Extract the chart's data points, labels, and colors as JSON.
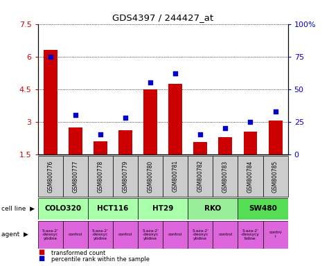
{
  "title": "GDS4397 / 244427_at",
  "samples": [
    "GSM800776",
    "GSM800777",
    "GSM800778",
    "GSM800779",
    "GSM800780",
    "GSM800781",
    "GSM800782",
    "GSM800783",
    "GSM800784",
    "GSM800785"
  ],
  "transformed_count": [
    6.3,
    2.75,
    2.1,
    2.6,
    4.5,
    4.75,
    2.05,
    2.3,
    2.55,
    3.05
  ],
  "percentile_rank": [
    75,
    30,
    15,
    28,
    55,
    62,
    15,
    20,
    25,
    33
  ],
  "ylim_left": [
    1.5,
    7.5
  ],
  "ylim_right": [
    0,
    100
  ],
  "yticks_left": [
    1.5,
    3.0,
    4.5,
    6.0,
    7.5
  ],
  "yticks_right": [
    0,
    25,
    50,
    75,
    100
  ],
  "ytick_labels_left": [
    "1.5",
    "3",
    "4.5",
    "6",
    "7.5"
  ],
  "ytick_labels_right": [
    "0",
    "25",
    "50",
    "75",
    "100%"
  ],
  "cell_lines": [
    {
      "label": "COLO320",
      "start": 0,
      "end": 2,
      "color": "#aaffaa"
    },
    {
      "label": "HCT116",
      "start": 2,
      "end": 4,
      "color": "#aaffaa"
    },
    {
      "label": "HT29",
      "start": 4,
      "end": 6,
      "color": "#aaffaa"
    },
    {
      "label": "RKO",
      "start": 6,
      "end": 8,
      "color": "#99ee99"
    },
    {
      "label": "SW480",
      "start": 8,
      "end": 10,
      "color": "#55dd55"
    }
  ],
  "agents": [
    {
      "label": "5-aza-2'\n-deoxyc\nytidine",
      "start": 0,
      "end": 1
    },
    {
      "label": "control",
      "start": 1,
      "end": 2
    },
    {
      "label": "5-aza-2'\n-deoxyc\nytidine",
      "start": 2,
      "end": 3
    },
    {
      "label": "control",
      "start": 3,
      "end": 4
    },
    {
      "label": "5-aza-2'\n-deoxyc\nytidine",
      "start": 4,
      "end": 5
    },
    {
      "label": "control",
      "start": 5,
      "end": 6
    },
    {
      "label": "5-aza-2'\n-deoxyc\nytidine",
      "start": 6,
      "end": 7
    },
    {
      "label": "control",
      "start": 7,
      "end": 8
    },
    {
      "label": "5-aza-2'\n-deoxycy\ntidine",
      "start": 8,
      "end": 9
    },
    {
      "label": "contro\nl",
      "start": 9,
      "end": 10
    }
  ],
  "bar_color": "#cc0000",
  "scatter_color": "#0000cc",
  "bar_width": 0.55,
  "sample_bg_color": "#cccccc",
  "left_label_color": "#cc0000",
  "right_label_color": "#0000cc",
  "agent_color": "#dd66dd",
  "grid_color": "black"
}
